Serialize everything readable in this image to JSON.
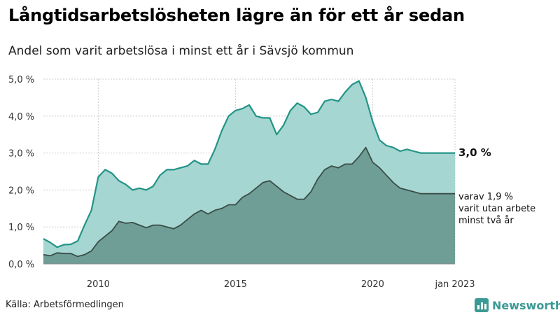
{
  "header": {
    "title": "Långtidsarbetslösheten lägre än för ett år sedan",
    "subtitle": "Andel som varit arbetslösa i minst ett år i Sävsjö kommun"
  },
  "footer": {
    "source": "Källa: Arbetsförmedlingen",
    "logo_text": "Newsworthy",
    "logo_icon": "bar-chart-icon"
  },
  "colors": {
    "total_fill": "#a6d6d1",
    "total_line": "#229487",
    "sub_fill": "#6f9e96",
    "sub_line": "#3a4d48",
    "grid": "#cccccc",
    "brand": "#3b9a94"
  },
  "annotations": {
    "total_end": "3,0 %",
    "sub_line1": "varav 1,9 %",
    "sub_line2": "varit utan arbete",
    "sub_line3": "minst två år"
  },
  "chart_data": {
    "type": "area",
    "title": "Långtidsarbetslösheten lägre än för ett år sedan",
    "subtitle": "Andel som varit arbetslösa i minst ett år i Sävsjö kommun",
    "ylim": [
      0,
      5
    ],
    "yticks": [
      {
        "value": 0,
        "label": "0,0 %"
      },
      {
        "value": 1,
        "label": "1,0 %"
      },
      {
        "value": 2,
        "label": "2,0 %"
      },
      {
        "value": 3,
        "label": "3,0 %"
      },
      {
        "value": 4,
        "label": "4,0 %"
      },
      {
        "value": 5,
        "label": "5,0 %"
      }
    ],
    "xlim": [
      "2008-01",
      "2023-01"
    ],
    "xticks": [
      {
        "value": "2010-01",
        "label": "2010"
      },
      {
        "value": "2015-01",
        "label": "2015"
      },
      {
        "value": "2020-01",
        "label": "2020"
      },
      {
        "value": "2023-01",
        "label": "jan 2023"
      }
    ],
    "grid": true,
    "legend": "none",
    "series": [
      {
        "points": [
          [
            "2008-01",
            0.68
          ],
          [
            "2008-04",
            0.58
          ],
          [
            "2008-07",
            0.45
          ],
          [
            "2008-10",
            0.52
          ],
          [
            "2009-01",
            0.53
          ],
          [
            "2009-04",
            0.62
          ],
          [
            "2009-07",
            1.05
          ],
          [
            "2009-10",
            1.45
          ],
          [
            "2010-01",
            2.35
          ],
          [
            "2010-04",
            2.55
          ],
          [
            "2010-07",
            2.45
          ],
          [
            "2010-10",
            2.25
          ],
          [
            "2011-01",
            2.15
          ],
          [
            "2011-04",
            2.0
          ],
          [
            "2011-07",
            2.05
          ],
          [
            "2011-10",
            2.0
          ],
          [
            "2012-01",
            2.1
          ],
          [
            "2012-04",
            2.4
          ],
          [
            "2012-07",
            2.55
          ],
          [
            "2012-10",
            2.55
          ],
          [
            "2013-01",
            2.6
          ],
          [
            "2013-04",
            2.65
          ],
          [
            "2013-07",
            2.8
          ],
          [
            "2013-10",
            2.7
          ],
          [
            "2014-01",
            2.7
          ],
          [
            "2014-04",
            3.1
          ],
          [
            "2014-07",
            3.6
          ],
          [
            "2014-10",
            4.0
          ],
          [
            "2015-01",
            4.15
          ],
          [
            "2015-04",
            4.2
          ],
          [
            "2015-07",
            4.3
          ],
          [
            "2015-10",
            4.0
          ],
          [
            "2016-01",
            3.95
          ],
          [
            "2016-04",
            3.95
          ],
          [
            "2016-07",
            3.5
          ],
          [
            "2016-10",
            3.75
          ],
          [
            "2017-01",
            4.15
          ],
          [
            "2017-04",
            4.35
          ],
          [
            "2017-07",
            4.25
          ],
          [
            "2017-10",
            4.05
          ],
          [
            "2018-01",
            4.1
          ],
          [
            "2018-04",
            4.4
          ],
          [
            "2018-07",
            4.45
          ],
          [
            "2018-10",
            4.4
          ],
          [
            "2019-01",
            4.65
          ],
          [
            "2019-04",
            4.85
          ],
          [
            "2019-07",
            4.95
          ],
          [
            "2019-10",
            4.5
          ],
          [
            "2020-01",
            3.85
          ],
          [
            "2020-04",
            3.35
          ],
          [
            "2020-07",
            3.2
          ],
          [
            "2020-10",
            3.15
          ],
          [
            "2021-01",
            3.05
          ],
          [
            "2021-04",
            3.1
          ],
          [
            "2021-07",
            3.05
          ],
          [
            "2021-10",
            3.0
          ],
          [
            "2022-01",
            3.0
          ],
          [
            "2022-04",
            3.0
          ],
          [
            "2022-07",
            3.0
          ],
          [
            "2022-10",
            3.0
          ],
          [
            "2023-01",
            3.0
          ]
        ]
      },
      {
        "points": [
          [
            "2008-01",
            0.25
          ],
          [
            "2008-04",
            0.22
          ],
          [
            "2008-07",
            0.3
          ],
          [
            "2008-10",
            0.28
          ],
          [
            "2009-01",
            0.28
          ],
          [
            "2009-04",
            0.2
          ],
          [
            "2009-07",
            0.25
          ],
          [
            "2009-10",
            0.35
          ],
          [
            "2010-01",
            0.6
          ],
          [
            "2010-04",
            0.75
          ],
          [
            "2010-07",
            0.9
          ],
          [
            "2010-10",
            1.15
          ],
          [
            "2011-01",
            1.1
          ],
          [
            "2011-04",
            1.12
          ],
          [
            "2011-07",
            1.05
          ],
          [
            "2011-10",
            0.98
          ],
          [
            "2012-01",
            1.05
          ],
          [
            "2012-04",
            1.05
          ],
          [
            "2012-07",
            1.0
          ],
          [
            "2012-10",
            0.95
          ],
          [
            "2013-01",
            1.05
          ],
          [
            "2013-04",
            1.2
          ],
          [
            "2013-07",
            1.35
          ],
          [
            "2013-10",
            1.45
          ],
          [
            "2014-01",
            1.35
          ],
          [
            "2014-04",
            1.45
          ],
          [
            "2014-07",
            1.5
          ],
          [
            "2014-10",
            1.6
          ],
          [
            "2015-01",
            1.6
          ],
          [
            "2015-04",
            1.8
          ],
          [
            "2015-07",
            1.9
          ],
          [
            "2015-10",
            2.05
          ],
          [
            "2016-01",
            2.2
          ],
          [
            "2016-04",
            2.25
          ],
          [
            "2016-07",
            2.1
          ],
          [
            "2016-10",
            1.95
          ],
          [
            "2017-01",
            1.85
          ],
          [
            "2017-04",
            1.75
          ],
          [
            "2017-07",
            1.75
          ],
          [
            "2017-10",
            1.95
          ],
          [
            "2018-01",
            2.3
          ],
          [
            "2018-04",
            2.55
          ],
          [
            "2018-07",
            2.65
          ],
          [
            "2018-10",
            2.6
          ],
          [
            "2019-01",
            2.7
          ],
          [
            "2019-04",
            2.7
          ],
          [
            "2019-07",
            2.9
          ],
          [
            "2019-10",
            3.15
          ],
          [
            "2020-01",
            2.75
          ],
          [
            "2020-04",
            2.6
          ],
          [
            "2020-07",
            2.4
          ],
          [
            "2020-10",
            2.2
          ],
          [
            "2021-01",
            2.05
          ],
          [
            "2021-04",
            2.0
          ],
          [
            "2021-07",
            1.95
          ],
          [
            "2021-10",
            1.9
          ],
          [
            "2022-01",
            1.9
          ],
          [
            "2022-04",
            1.9
          ],
          [
            "2022-07",
            1.9
          ],
          [
            "2022-10",
            1.9
          ],
          [
            "2023-01",
            1.9
          ]
        ]
      }
    ]
  }
}
